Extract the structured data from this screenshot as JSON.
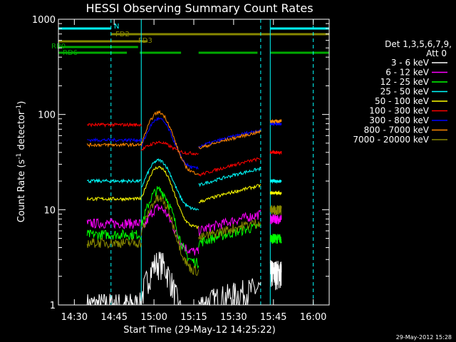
{
  "chart_data": {
    "type": "line",
    "title": "HESSI Observing Summary Count Rates",
    "xlabel": "Start Time (29-May-12 14:25:22)",
    "ylabel_main": "Count Rate (s",
    "ylabel_sup1": "-1",
    "ylabel_mid": " detector",
    "ylabel_sup2": "-1",
    "ylabel_end": ")",
    "xlim": [
      14.4,
      16.1
    ],
    "ylim": [
      1,
      1000
    ],
    "yscale": "log",
    "x_ticks": [
      {
        "value": 14.5,
        "label": "14:30"
      },
      {
        "value": 14.75,
        "label": "14:45"
      },
      {
        "value": 15.0,
        "label": "15:00"
      },
      {
        "value": 15.25,
        "label": "15:15"
      },
      {
        "value": 15.5,
        "label": "15:30"
      },
      {
        "value": 15.75,
        "label": "15:45"
      },
      {
        "value": 16.0,
        "label": "16:00"
      }
    ],
    "y_ticks": [
      {
        "value": 1,
        "label": "1"
      },
      {
        "value": 10,
        "label": "10"
      },
      {
        "value": 100,
        "label": "100"
      },
      {
        "value": 1000,
        "label": "1000"
      }
    ],
    "legend_title_1": "Det 1,3,5,6,7,9,",
    "legend_title_2": "Att 0",
    "legend_position": "right",
    "flag_bars": [
      {
        "label": "N",
        "color": "#00ffff",
        "segments": [
          [
            14.4,
            14.73
          ],
          [
            15.73,
            16.1
          ]
        ]
      },
      {
        "label": "FD2",
        "color": "#888800",
        "segments": [
          [
            14.73,
            16.1
          ]
        ]
      },
      {
        "label": "FD3",
        "color": "#888800",
        "segments": [
          [
            14.38,
            14.96
          ]
        ]
      },
      {
        "label": "RB0",
        "color": "#00aa00",
        "segments": [
          [
            14.4,
            14.9
          ]
        ]
      },
      {
        "label": "RD6",
        "color": "#00aa00",
        "segments": [
          [
            14.4,
            14.83
          ],
          [
            14.91,
            15.17
          ],
          [
            15.28,
            15.65
          ],
          [
            15.73,
            16.1
          ]
        ]
      }
    ],
    "vlines_solid": [
      14.92,
      15.73
    ],
    "vlines_dashed": [
      14.73,
      15.67,
      16.0
    ],
    "data_start": 14.58,
    "data_end": 15.8,
    "gaps": [
      [
        14.92,
        15.28
      ],
      [
        15.67,
        15.73
      ]
    ],
    "series": [
      {
        "name": "3 - 6 keV",
        "color": "#ffffff",
        "levels": [
          1.0,
          2.8,
          1.0,
          2.2
        ]
      },
      {
        "name": "6 - 12 keV",
        "color": "#ff00ff",
        "levels": [
          7.2,
          10.5,
          6.0,
          8.0
        ]
      },
      {
        "name": "12 - 25 keV",
        "color": "#00ff00",
        "levels": [
          5.5,
          16.0,
          4.5,
          5.0
        ]
      },
      {
        "name": "25 - 50 keV",
        "color": "#00ffff",
        "levels": [
          20.0,
          33.0,
          18.0,
          20.0
        ]
      },
      {
        "name": "50 - 100 keV",
        "color": "#ffff00",
        "levels": [
          13.0,
          28.0,
          12.0,
          15.0
        ]
      },
      {
        "name": "100 - 300 keV",
        "color": "#ff0000",
        "levels": [
          78.0,
          51.0,
          23.0,
          40.0
        ]
      },
      {
        "name": "300 - 800 keV",
        "color": "#0000ff",
        "levels": [
          54.0,
          90.0,
          46.0,
          80.0
        ]
      },
      {
        "name": "800 - 7000 keV",
        "color": "#ff8800",
        "levels": [
          48.0,
          105.0,
          44.0,
          85.0
        ]
      },
      {
        "name": "7000 - 20000 keV",
        "color": "#888800",
        "levels": [
          4.5,
          13.0,
          5.0,
          10.0
        ]
      }
    ]
  },
  "footer_date": "29-May-2012 15:28"
}
